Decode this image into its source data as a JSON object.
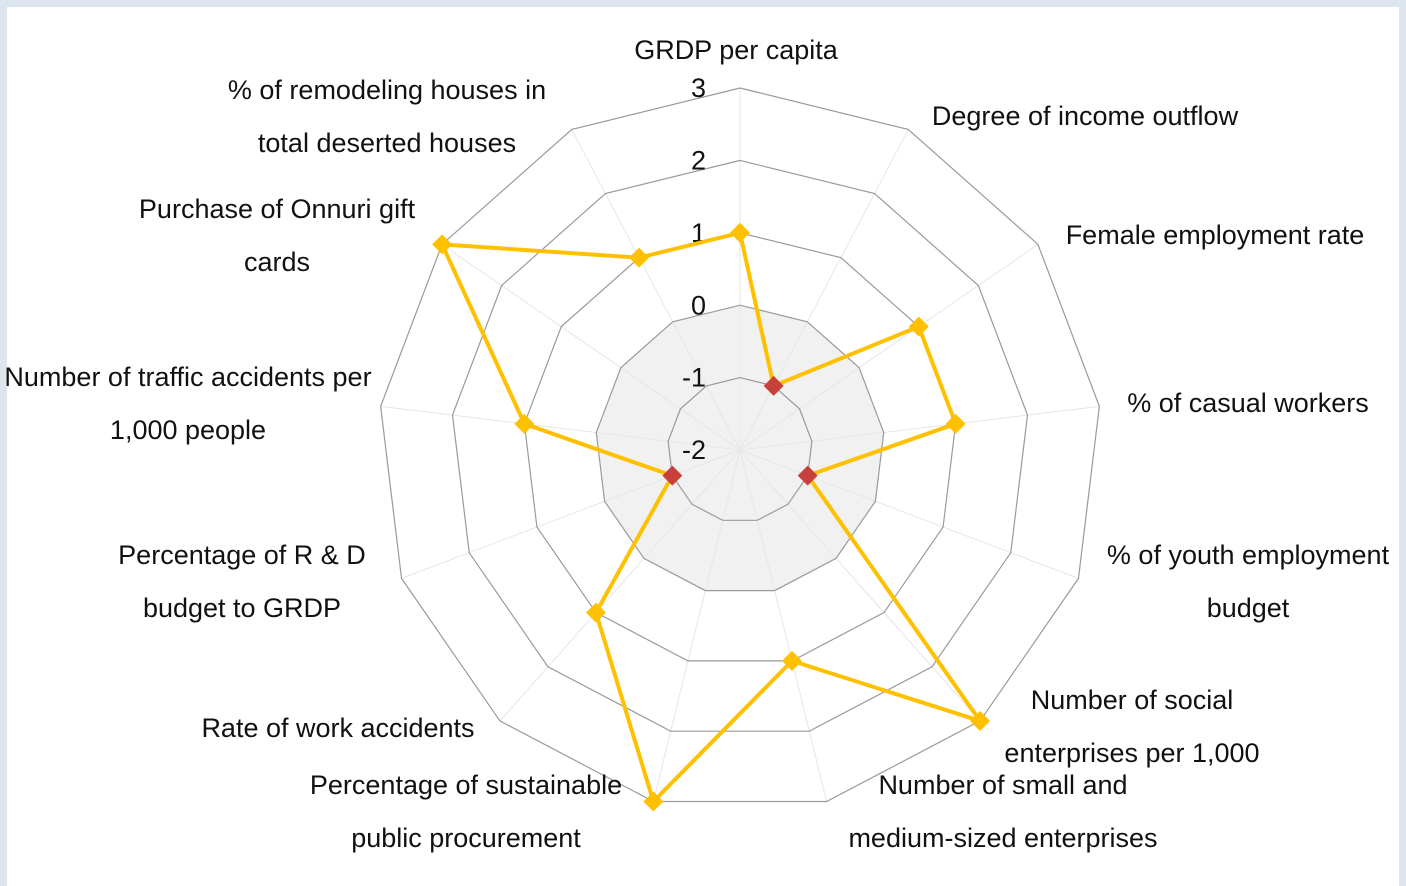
{
  "chart_data": {
    "type": "radar",
    "categories": [
      "GRDP per capita",
      "Degree of income outflow",
      "Female employment rate",
      "% of casual workers",
      "% of youth employment budget",
      "Number of social enterprises per 1,000",
      "Number of small and medium-sized enterprises",
      "Percentage of sustainable public procurement",
      "Rate of work accidents",
      "Percentage of R & D budget to GRDP",
      "Number of traffic accidents per 1,000 people",
      "Purchase of Onnuri gift cards",
      "% of remodeling houses in total deserted houses"
    ],
    "series": [
      {
        "color": "#ffc000",
        "values": [
          1,
          -1,
          1,
          1,
          -1,
          3,
          1,
          3,
          1,
          -1,
          1,
          3,
          1
        ]
      }
    ],
    "negative_marker_color": "#c8403a",
    "ylim": [
      -2,
      3
    ],
    "yticks": [
      -2,
      -1,
      0,
      1,
      2,
      3
    ],
    "shade_to": 0,
    "grid": true
  }
}
